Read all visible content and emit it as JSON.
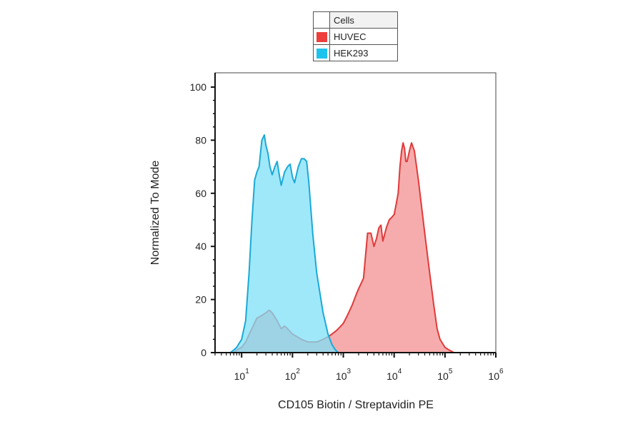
{
  "legend": {
    "header": "Cells",
    "items": [
      {
        "label": "HUVEC",
        "color": "#ee3d3d"
      },
      {
        "label": "HEK293",
        "color": "#1ec3ee"
      }
    ]
  },
  "chart_data": {
    "type": "area",
    "xlabel": "CD105 Biotin / Streptavidin PE",
    "ylabel": "Normalized To Mode",
    "x_scale": "log",
    "xlim": [
      3,
      1000000
    ],
    "ylim": [
      0,
      100
    ],
    "y_ticks": [
      0,
      20,
      40,
      60,
      80,
      100
    ],
    "x_ticks": [
      {
        "base": "10",
        "exp": "1",
        "value": 10
      },
      {
        "base": "10",
        "exp": "2",
        "value": 100
      },
      {
        "base": "10",
        "exp": "3",
        "value": 1000
      },
      {
        "base": "10",
        "exp": "4",
        "value": 10000
      },
      {
        "base": "10",
        "exp": "5",
        "value": 100000
      },
      {
        "base": "10",
        "exp": "6",
        "value": 1000000
      }
    ],
    "series": [
      {
        "name": "HUVEC",
        "fill": "#f5a3a3",
        "stroke": "#e03a3a",
        "points": [
          [
            3,
            0
          ],
          [
            4,
            0
          ],
          [
            5,
            0
          ],
          [
            6,
            0
          ],
          [
            7,
            0
          ],
          [
            8,
            1
          ],
          [
            10,
            2
          ],
          [
            12,
            4
          ],
          [
            15,
            8
          ],
          [
            20,
            13
          ],
          [
            25,
            14
          ],
          [
            30,
            15
          ],
          [
            35,
            16
          ],
          [
            40,
            15
          ],
          [
            50,
            12
          ],
          [
            60,
            9
          ],
          [
            70,
            10
          ],
          [
            80,
            9
          ],
          [
            100,
            7
          ],
          [
            150,
            5
          ],
          [
            200,
            4
          ],
          [
            250,
            4
          ],
          [
            300,
            4
          ],
          [
            400,
            5
          ],
          [
            500,
            6
          ],
          [
            600,
            7
          ],
          [
            700,
            8
          ],
          [
            800,
            9
          ],
          [
            1000,
            11
          ],
          [
            1200,
            14
          ],
          [
            1500,
            18
          ],
          [
            1800,
            22
          ],
          [
            2000,
            24
          ],
          [
            2500,
            28
          ],
          [
            3000,
            45
          ],
          [
            3500,
            45
          ],
          [
            4000,
            40
          ],
          [
            4500,
            43
          ],
          [
            5000,
            47
          ],
          [
            5500,
            48
          ],
          [
            6000,
            42
          ],
          [
            7000,
            47
          ],
          [
            8000,
            50
          ],
          [
            9000,
            51
          ],
          [
            10000,
            52
          ],
          [
            11000,
            56
          ],
          [
            12000,
            60
          ],
          [
            13000,
            70
          ],
          [
            14000,
            76
          ],
          [
            15000,
            79
          ],
          [
            16000,
            77
          ],
          [
            17000,
            72
          ],
          [
            18000,
            72
          ],
          [
            20000,
            76
          ],
          [
            22000,
            79
          ],
          [
            25000,
            76
          ],
          [
            30000,
            65
          ],
          [
            40000,
            45
          ],
          [
            50000,
            30
          ],
          [
            60000,
            18
          ],
          [
            70000,
            9
          ],
          [
            80000,
            5
          ],
          [
            100000,
            2
          ],
          [
            120000,
            1
          ],
          [
            150000,
            0
          ],
          [
            200000,
            0
          ],
          [
            500000,
            0
          ],
          [
            1000000,
            0
          ]
        ]
      },
      {
        "name": "HEK293",
        "fill": "#7fe0f8",
        "stroke": "#1aa9d6",
        "points": [
          [
            3,
            0
          ],
          [
            4,
            0
          ],
          [
            5,
            0
          ],
          [
            6,
            0
          ],
          [
            7,
            1
          ],
          [
            8,
            2
          ],
          [
            10,
            5
          ],
          [
            12,
            12
          ],
          [
            14,
            30
          ],
          [
            16,
            50
          ],
          [
            18,
            65
          ],
          [
            20,
            68
          ],
          [
            22,
            70
          ],
          [
            25,
            80
          ],
          [
            28,
            82
          ],
          [
            30,
            78
          ],
          [
            33,
            75
          ],
          [
            36,
            70
          ],
          [
            40,
            67
          ],
          [
            45,
            70
          ],
          [
            50,
            72
          ],
          [
            55,
            67
          ],
          [
            60,
            63
          ],
          [
            70,
            68
          ],
          [
            80,
            70
          ],
          [
            90,
            71
          ],
          [
            100,
            66
          ],
          [
            110,
            64
          ],
          [
            130,
            70
          ],
          [
            150,
            73
          ],
          [
            170,
            73
          ],
          [
            190,
            72
          ],
          [
            210,
            64
          ],
          [
            250,
            45
          ],
          [
            300,
            30
          ],
          [
            400,
            15
          ],
          [
            500,
            7
          ],
          [
            600,
            3
          ],
          [
            700,
            1
          ],
          [
            800,
            0
          ],
          [
            1000,
            0
          ]
        ]
      }
    ]
  }
}
